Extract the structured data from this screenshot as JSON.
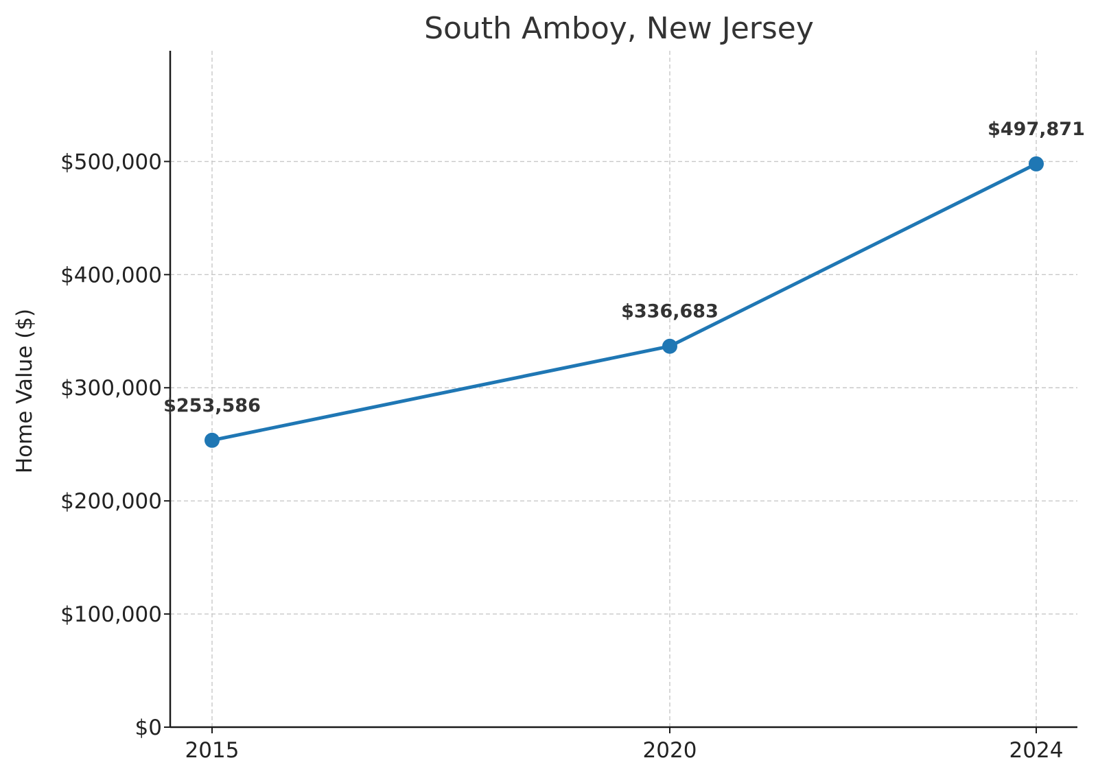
{
  "chart_data": {
    "type": "line",
    "title": "South Amboy, New Jersey",
    "xlabel": "",
    "ylabel": "Home Value ($)",
    "x": [
      "2015",
      "2020",
      "2024"
    ],
    "series": [
      {
        "values": [
          253586,
          336683,
          497871
        ],
        "color": "#1f77b4"
      }
    ],
    "data_labels": [
      "$253,586",
      "$336,683",
      "$497,871"
    ],
    "yticks": [
      0,
      100000,
      200000,
      300000,
      400000,
      500000
    ],
    "ytick_labels": [
      "$0",
      "$100,000",
      "$200,000",
      "$300,000",
      "$400,000",
      "$500,000"
    ],
    "ylim": [
      0,
      597871
    ],
    "grid": true,
    "legend": "none"
  }
}
